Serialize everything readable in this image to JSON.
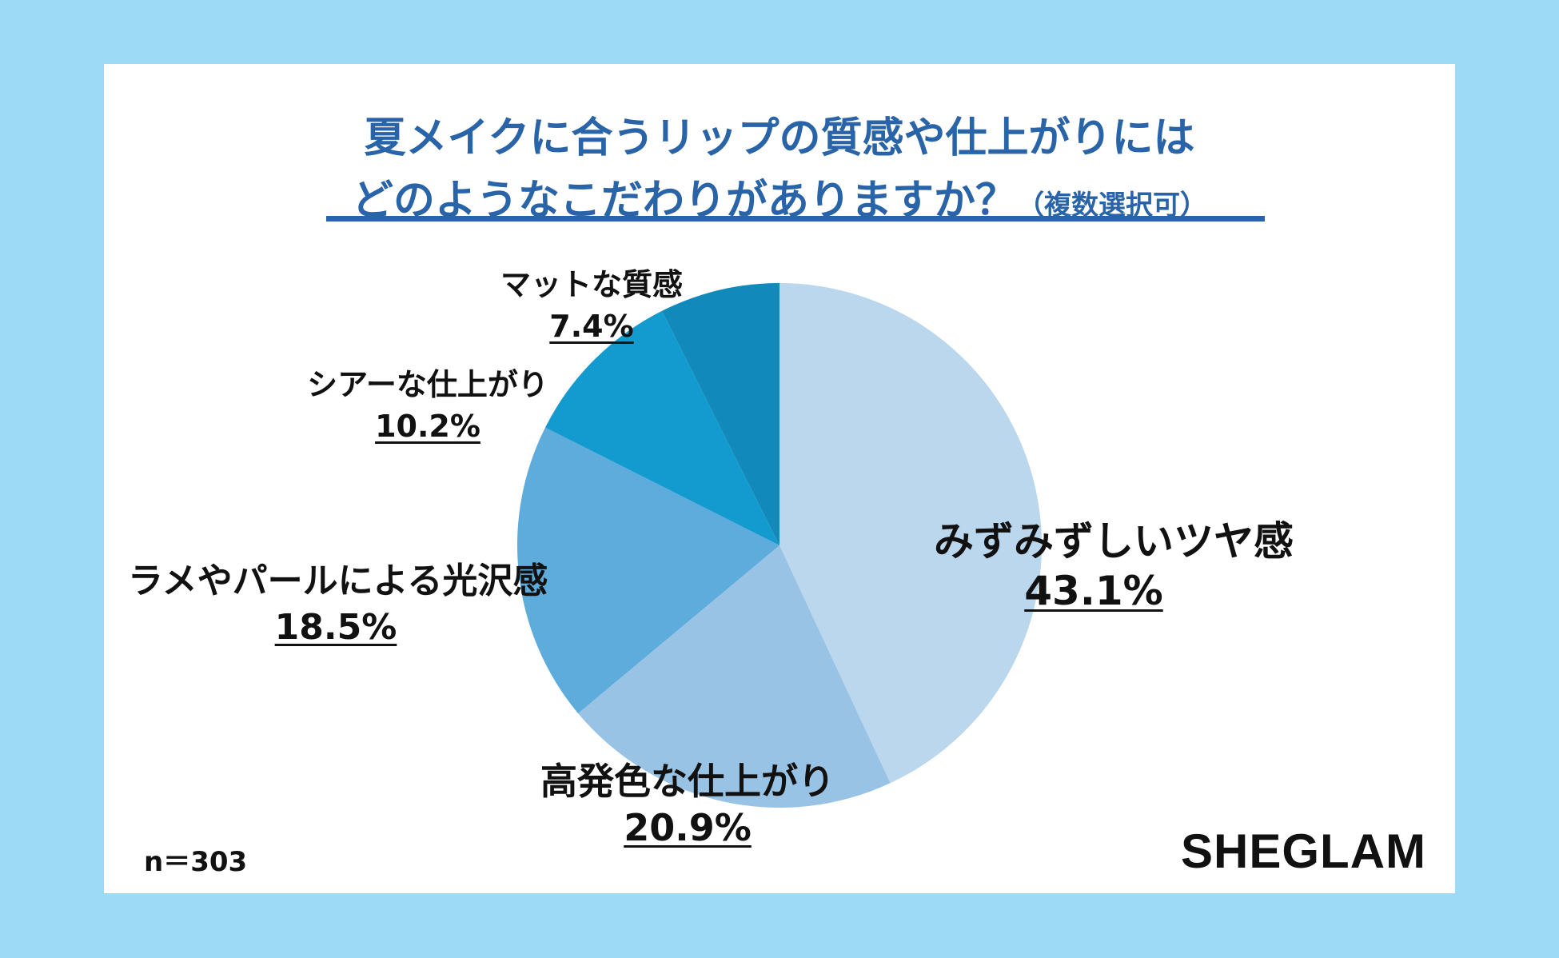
{
  "title": {
    "line1": "夏メイクに合うリップの質感や仕上がりには",
    "line2": "どのようなこだわりがありますか？",
    "note": "（複数選択可）"
  },
  "sample_size": "n＝303",
  "brand": "SHEGLAM",
  "colors": {
    "page_bg": "#9cdaf5",
    "title": "#2a64a8",
    "slices": [
      "#bad7ed",
      "#99c3e4",
      "#5dacdb",
      "#139ace",
      "#1189ba"
    ]
  },
  "chart_data": {
    "type": "pie",
    "title": "夏メイクに合うリップの質感や仕上がりにはどのようなこだわりがありますか？（複数選択可）",
    "slices": [
      {
        "label": "みずみずしいツヤ感",
        "value": 43.1,
        "value_label": "43.1%"
      },
      {
        "label": "高発色な仕上がり",
        "value": 20.9,
        "value_label": "20.9%"
      },
      {
        "label": "ラメやパールによる光沢感",
        "value": 18.5,
        "value_label": "18.5%"
      },
      {
        "label": "シアーな仕上がり",
        "value": 10.2,
        "value_label": "10.2%"
      },
      {
        "label": "マットな質感",
        "value": 7.4,
        "value_label": "7.4%"
      }
    ],
    "start_angle": "12 o'clock",
    "direction": "clockwise"
  }
}
